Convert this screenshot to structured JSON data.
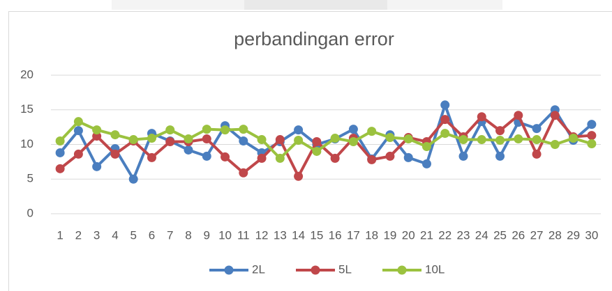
{
  "chart_data": {
    "type": "line",
    "title": "perbandingan error",
    "categories": [
      1,
      2,
      3,
      4,
      5,
      6,
      7,
      8,
      9,
      10,
      11,
      12,
      13,
      14,
      15,
      16,
      17,
      18,
      19,
      20,
      21,
      22,
      23,
      24,
      25,
      26,
      27,
      28,
      29,
      30
    ],
    "series": [
      {
        "name": "2L",
        "color": "#4a7ebf",
        "values": [
          8.8,
          12.0,
          6.8,
          9.4,
          5.0,
          11.6,
          10.5,
          9.2,
          8.3,
          12.7,
          10.5,
          8.8,
          10.4,
          12.1,
          10.0,
          10.8,
          12.2,
          7.9,
          11.4,
          8.1,
          7.2,
          15.7,
          8.3,
          13.3,
          8.3,
          13.2,
          12.3,
          15.0,
          10.6,
          12.9
        ]
      },
      {
        "name": "5L",
        "color": "#c0474a",
        "values": [
          6.5,
          8.6,
          11.2,
          8.6,
          10.5,
          8.1,
          10.4,
          10.4,
          10.8,
          8.2,
          5.9,
          8.0,
          10.7,
          5.4,
          10.4,
          8.0,
          10.9,
          7.8,
          8.3,
          11.0,
          10.4,
          13.6,
          11.1,
          14.0,
          12.0,
          14.2,
          8.6,
          14.2,
          11.1,
          11.3
        ]
      },
      {
        "name": "10L",
        "color": "#9bc23f",
        "values": [
          10.5,
          13.3,
          12.1,
          11.4,
          10.7,
          10.9,
          12.1,
          10.8,
          12.2,
          12.1,
          12.2,
          10.7,
          8.0,
          10.6,
          9.0,
          10.9,
          10.4,
          11.9,
          11.0,
          10.8,
          9.7,
          11.6,
          10.7,
          10.7,
          10.6,
          10.8,
          10.7,
          10.0,
          10.9,
          10.1
        ]
      }
    ],
    "ylim": [
      0,
      20
    ],
    "yticks": [
      0,
      5,
      10,
      15,
      20
    ],
    "grid": true,
    "legend": "bottom"
  }
}
